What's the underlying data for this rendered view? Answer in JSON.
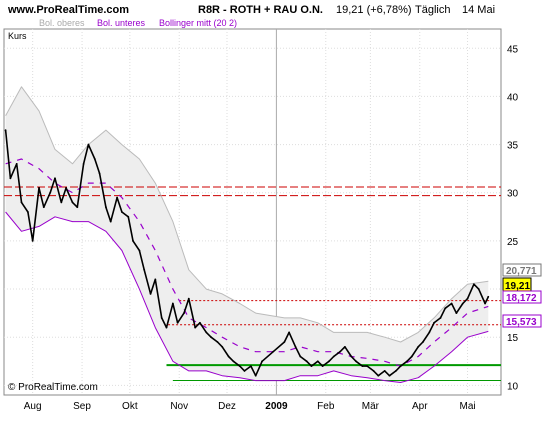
{
  "header": {
    "site": "www.ProRealTime.com",
    "title": "R8R - ROTH + RAU O.N.",
    "quote": "19,21 (+6,78%)",
    "period": "Täglich",
    "date": "14 Mai"
  },
  "legend": {
    "kurs": "Kurs",
    "bol_upper": "Bol. oberes",
    "bol_lower": "Bol. unteres",
    "bol_mid": "Bollinger mitt (20 2)"
  },
  "copyright": "© ProRealTime.com",
  "colors": {
    "price": "#000000",
    "band_fill": "#eeeeee",
    "band_upper": "#bbbbbb",
    "band_lower": "#9900cc",
    "band_mid": "#9900cc",
    "resistance": "#cc0000",
    "support": "#009900",
    "badge_price": "#ffff00",
    "badge_upper": "#777777",
    "badge_mid": "#9900cc",
    "badge_lower": "#9900cc"
  },
  "badges": {
    "upper": "20,771",
    "price": "19,21",
    "mid": "18,172",
    "lower": "15,573"
  },
  "chart_data": {
    "type": "line",
    "x_labels": [
      "Aug",
      "Sep",
      "Okt",
      "Nov",
      "Dez",
      "2009",
      "Feb",
      "Mär",
      "Apr",
      "Mai"
    ],
    "y_ticks": [
      "10",
      "15",
      "20",
      "25",
      "30",
      "35",
      "40",
      "45"
    ],
    "ylim": [
      9,
      47
    ],
    "x_range": [
      "2008-07-14",
      "2009-05-22"
    ],
    "x_tick_dates": [
      "2008-08-01",
      "2008-09-01",
      "2008-10-01",
      "2008-11-01",
      "2008-12-01",
      "2009-01-01",
      "2009-02-01",
      "2009-03-01",
      "2009-04-01",
      "2009-05-01"
    ],
    "grid_x": true,
    "grid_y": true,
    "series": [
      {
        "name": "Kurs",
        "x": [
          "2008-07-15",
          "2008-07-18",
          "2008-07-22",
          "2008-07-25",
          "2008-07-29",
          "2008-08-01",
          "2008-08-05",
          "2008-08-08",
          "2008-08-12",
          "2008-08-15",
          "2008-08-19",
          "2008-08-22",
          "2008-08-26",
          "2008-08-29",
          "2008-09-02",
          "2008-09-05",
          "2008-09-09",
          "2008-09-12",
          "2008-09-16",
          "2008-09-19",
          "2008-09-23",
          "2008-09-26",
          "2008-09-30",
          "2008-10-03",
          "2008-10-07",
          "2008-10-10",
          "2008-10-14",
          "2008-10-17",
          "2008-10-21",
          "2008-10-24",
          "2008-10-28",
          "2008-10-31",
          "2008-11-04",
          "2008-11-07",
          "2008-11-11",
          "2008-11-14",
          "2008-11-18",
          "2008-11-21",
          "2008-11-25",
          "2008-11-28",
          "2008-12-02",
          "2008-12-05",
          "2008-12-09",
          "2008-12-12",
          "2008-12-16",
          "2008-12-19",
          "2008-12-23",
          "2008-12-30",
          "2009-01-06",
          "2009-01-09",
          "2009-01-13",
          "2009-01-16",
          "2009-01-20",
          "2009-01-23",
          "2009-01-27",
          "2009-01-30",
          "2009-02-03",
          "2009-02-06",
          "2009-02-10",
          "2009-02-13",
          "2009-02-17",
          "2009-02-20",
          "2009-02-24",
          "2009-02-27",
          "2009-03-03",
          "2009-03-06",
          "2009-03-10",
          "2009-03-13",
          "2009-03-17",
          "2009-03-20",
          "2009-03-24",
          "2009-03-27",
          "2009-03-31",
          "2009-04-03",
          "2009-04-07",
          "2009-04-10",
          "2009-04-14",
          "2009-04-17",
          "2009-04-21",
          "2009-04-24",
          "2009-04-28",
          "2009-05-01",
          "2009-05-05",
          "2009-05-08",
          "2009-05-12",
          "2009-05-14"
        ],
        "values": [
          36.5,
          31.5,
          33.0,
          29.0,
          28.0,
          25.0,
          30.5,
          28.5,
          30.0,
          31.5,
          29.0,
          30.5,
          29.0,
          28.5,
          33.0,
          35.0,
          33.5,
          32.0,
          28.5,
          27.0,
          29.5,
          28.0,
          27.5,
          25.0,
          24.0,
          22.0,
          19.5,
          21.0,
          17.0,
          16.0,
          18.5,
          16.5,
          17.5,
          19.0,
          16.0,
          16.5,
          15.5,
          15.0,
          14.5,
          14.0,
          13.0,
          12.5,
          12.0,
          11.5,
          12.0,
          11.0,
          12.5,
          13.5,
          14.5,
          15.5,
          14.0,
          13.0,
          12.5,
          12.0,
          12.5,
          12.0,
          12.5,
          13.0,
          13.5,
          14.0,
          13.0,
          12.5,
          12.0,
          12.0,
          11.5,
          11.0,
          11.5,
          11.0,
          11.5,
          12.0,
          12.5,
          13.0,
          14.0,
          14.5,
          15.5,
          16.5,
          17.0,
          18.0,
          18.5,
          17.5,
          18.5,
          19.0,
          20.5,
          20.0,
          18.5,
          19.2
        ]
      },
      {
        "name": "Bol. oberes",
        "x": [
          "2008-07-15",
          "2008-07-25",
          "2008-08-05",
          "2008-08-15",
          "2008-08-26",
          "2008-09-05",
          "2008-09-16",
          "2008-09-26",
          "2008-10-07",
          "2008-10-17",
          "2008-10-28",
          "2008-11-07",
          "2008-11-18",
          "2008-11-28",
          "2008-12-09",
          "2008-12-19",
          "2009-01-06",
          "2009-01-16",
          "2009-01-27",
          "2009-02-06",
          "2009-02-17",
          "2009-02-27",
          "2009-03-10",
          "2009-03-20",
          "2009-03-31",
          "2009-04-10",
          "2009-04-21",
          "2009-05-01",
          "2009-05-14"
        ],
        "values": [
          38.0,
          41.0,
          38.5,
          34.5,
          33.0,
          35.0,
          36.5,
          35.0,
          33.5,
          31.0,
          27.0,
          22.0,
          20.0,
          19.5,
          18.5,
          17.5,
          17.0,
          17.0,
          16.5,
          15.5,
          15.5,
          15.5,
          15.0,
          14.5,
          15.5,
          17.0,
          19.0,
          20.5,
          20.8
        ]
      },
      {
        "name": "Bol. unteres",
        "x": [
          "2008-07-15",
          "2008-07-25",
          "2008-08-05",
          "2008-08-15",
          "2008-08-26",
          "2008-09-05",
          "2008-09-16",
          "2008-09-26",
          "2008-10-07",
          "2008-10-17",
          "2008-10-28",
          "2008-11-07",
          "2008-11-18",
          "2008-11-28",
          "2008-12-09",
          "2008-12-19",
          "2009-01-06",
          "2009-01-16",
          "2009-01-27",
          "2009-02-06",
          "2009-02-17",
          "2009-02-27",
          "2009-03-10",
          "2009-03-20",
          "2009-03-31",
          "2009-04-10",
          "2009-04-21",
          "2009-05-01",
          "2009-05-14"
        ],
        "values": [
          28.0,
          26.0,
          26.5,
          27.5,
          27.0,
          27.0,
          26.0,
          24.0,
          20.0,
          16.0,
          12.5,
          11.5,
          11.5,
          11.0,
          10.8,
          10.5,
          10.5,
          11.0,
          11.0,
          11.5,
          11.0,
          10.8,
          10.5,
          10.3,
          10.8,
          12.0,
          13.5,
          15.0,
          15.6
        ]
      },
      {
        "name": "Bollinger mitt (20 2)",
        "x": [
          "2008-07-15",
          "2008-07-25",
          "2008-08-05",
          "2008-08-15",
          "2008-08-26",
          "2008-09-05",
          "2008-09-16",
          "2008-09-26",
          "2008-10-07",
          "2008-10-17",
          "2008-10-28",
          "2008-11-07",
          "2008-11-18",
          "2008-11-28",
          "2008-12-09",
          "2008-12-19",
          "2009-01-06",
          "2009-01-16",
          "2009-01-27",
          "2009-02-06",
          "2009-02-17",
          "2009-02-27",
          "2009-03-10",
          "2009-03-20",
          "2009-03-31",
          "2009-04-10",
          "2009-04-21",
          "2009-05-01",
          "2009-05-14"
        ],
        "values": [
          33.0,
          33.5,
          32.5,
          31.0,
          30.0,
          31.0,
          31.0,
          29.5,
          27.0,
          24.0,
          20.0,
          17.0,
          16.0,
          15.0,
          14.0,
          13.5,
          13.5,
          14.0,
          13.5,
          13.5,
          13.0,
          12.8,
          12.5,
          12.0,
          13.0,
          14.5,
          16.0,
          17.5,
          18.2
        ]
      }
    ],
    "hlines": [
      {
        "type": "resistance",
        "value": 30.6,
        "x_from": "2008-07-14",
        "x_to": "2009-05-22",
        "style": "dashed"
      },
      {
        "type": "resistance",
        "value": 29.7,
        "x_from": "2008-07-14",
        "x_to": "2009-05-22",
        "style": "dashed"
      },
      {
        "type": "resistance",
        "value": 18.8,
        "x_from": "2008-11-01",
        "x_to": "2009-05-22",
        "style": "dotted"
      },
      {
        "type": "resistance",
        "value": 16.3,
        "x_from": "2008-10-25",
        "x_to": "2009-05-22",
        "style": "dotted"
      },
      {
        "type": "support",
        "value": 12.1,
        "x_from": "2008-10-24",
        "x_to": "2009-05-22",
        "style": "solid"
      },
      {
        "type": "support",
        "value": 10.5,
        "x_from": "2008-10-28",
        "x_to": "2009-05-22",
        "style": "solid"
      }
    ]
  }
}
